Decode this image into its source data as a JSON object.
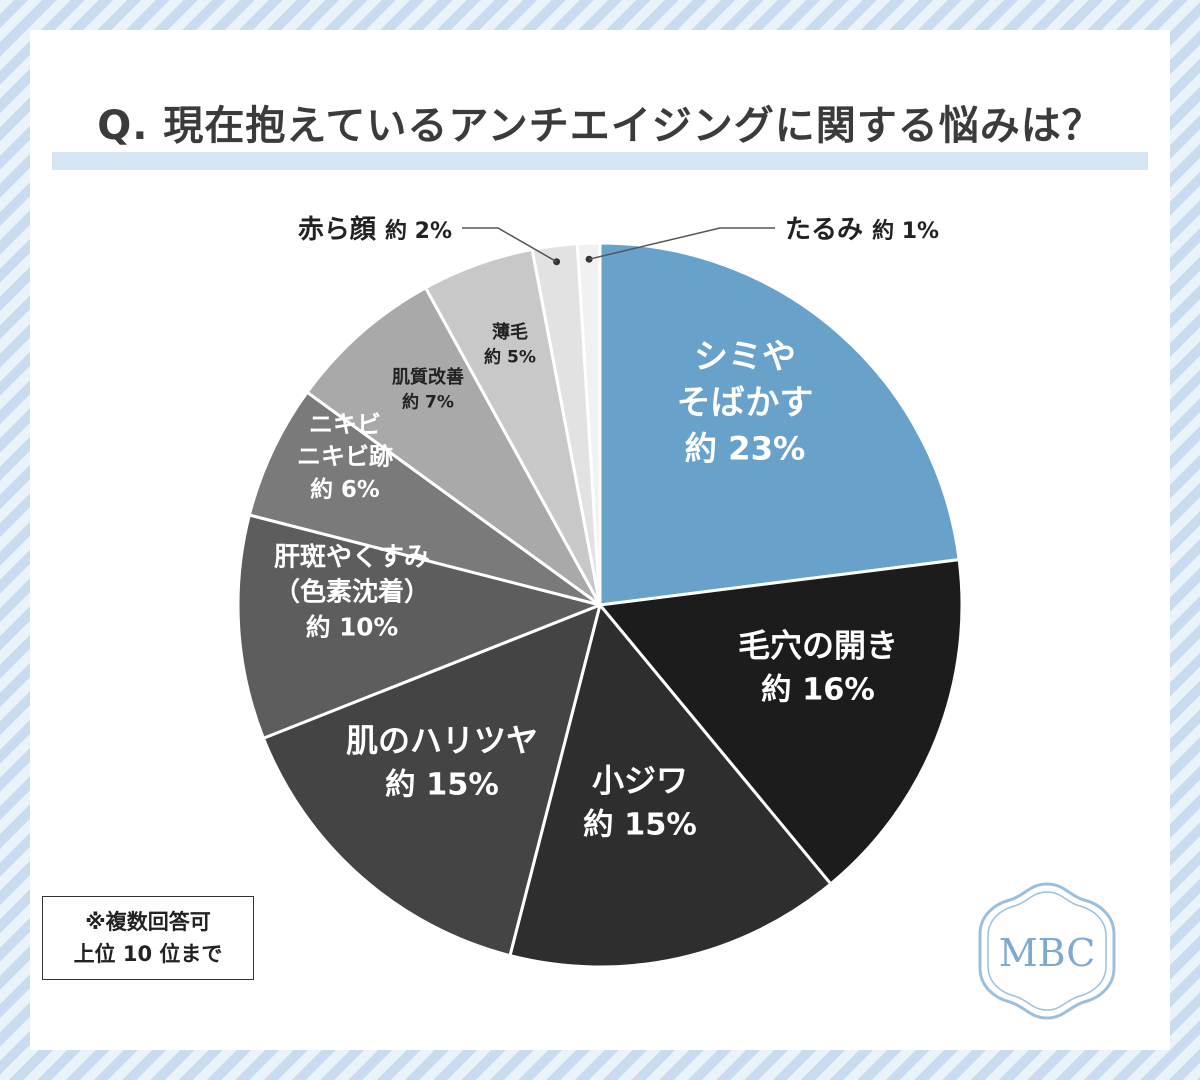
{
  "title": "Q. 現在抱えているアンチエイジングに関する悩みは？",
  "note": {
    "line1": "※複数回答可",
    "line2": "上位 10 位まで"
  },
  "logo": {
    "text": "MBC"
  },
  "colors": {
    "background": "#dde9f5",
    "accent": "#68a2cb",
    "title": "#3b3b3b"
  },
  "chart_data": {
    "type": "pie",
    "start": "12 o'clock, clockwise",
    "slices": [
      {
        "label": [
          "シミや",
          "そばかす"
        ],
        "value_label": "約 23%",
        "value": 23,
        "color": "#68a2cb",
        "text_color": "#ffffff"
      },
      {
        "label": [
          "毛穴の開き"
        ],
        "value_label": "約 16%",
        "value": 16,
        "color": "#1c1c1c",
        "text_color": "#ffffff"
      },
      {
        "label": [
          "小ジワ"
        ],
        "value_label": "約 15%",
        "value": 15,
        "color": "#2e2e2e",
        "text_color": "#ffffff"
      },
      {
        "label": [
          "肌のハリツヤ"
        ],
        "value_label": "約 15%",
        "value": 15,
        "color": "#444444",
        "text_color": "#ffffff"
      },
      {
        "label": [
          "肝斑やくすみ",
          "（色素沈着）"
        ],
        "value_label": "約 10%",
        "value": 10,
        "color": "#5d5d5d",
        "text_color": "#ffffff"
      },
      {
        "label": [
          "ニキビ",
          "ニキビ跡"
        ],
        "value_label": "約 6%",
        "value": 6,
        "color": "#7a7a7a",
        "text_color": "#ffffff"
      },
      {
        "label": [
          "肌質改善"
        ],
        "value_label": "約 7%",
        "value": 7,
        "color": "#a9a9a9",
        "text_color": "#222222"
      },
      {
        "label": [
          "薄毛"
        ],
        "value_label": "約 5%",
        "value": 5,
        "color": "#c8c8c8",
        "text_color": "#222222"
      },
      {
        "label": [
          "赤ら顔"
        ],
        "value_label": "約 2%",
        "value": 2,
        "color": "#e2e2e2",
        "text_color": "#222222",
        "callout": "left"
      },
      {
        "label": [
          "たるみ"
        ],
        "value_label": "約 1%",
        "value": 1,
        "color": "#f1f1f1",
        "text_color": "#222222",
        "callout": "right"
      }
    ]
  }
}
